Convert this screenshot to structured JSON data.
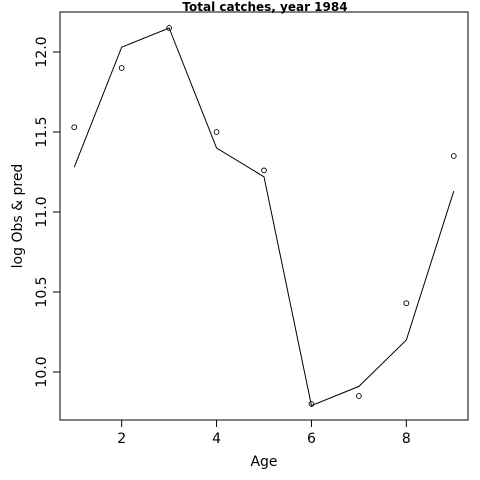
{
  "chart_data": {
    "type": "line",
    "title": "Total catches, year 1984",
    "xlabel": "Age",
    "ylabel": "log Obs & pred",
    "xlim": [
      0.7,
      9.3
    ],
    "ylim": [
      9.7,
      12.25
    ],
    "x_ticks": [
      2,
      4,
      6,
      8
    ],
    "y_ticks": [
      10.0,
      10.5,
      11.0,
      11.5,
      12.0
    ],
    "x_tick_labels": [
      "2",
      "4",
      "6",
      "8"
    ],
    "y_tick_labels": [
      "10.0",
      "10.5",
      "11.0",
      "11.5",
      "12.0"
    ],
    "grid": false,
    "legend": "none",
    "series": [
      {
        "kind": "points",
        "x": [
          1,
          2,
          3,
          4,
          5,
          6,
          7,
          8,
          9
        ],
        "values": [
          11.53,
          11.9,
          12.15,
          11.5,
          11.26,
          9.8,
          9.85,
          10.43,
          11.35
        ]
      },
      {
        "kind": "line",
        "x": [
          1,
          2,
          3,
          4,
          5,
          6,
          7,
          8,
          9
        ],
        "values": [
          11.28,
          12.03,
          12.15,
          11.4,
          11.22,
          9.79,
          9.91,
          10.2,
          11.13
        ]
      }
    ]
  }
}
